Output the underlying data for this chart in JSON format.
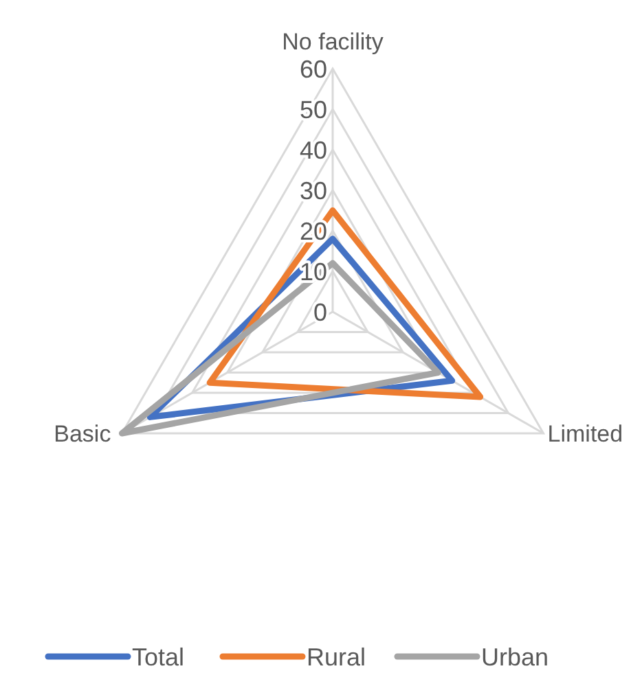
{
  "chart_data": {
    "type": "radar",
    "categories": [
      "No facility",
      "Limited",
      "Basic"
    ],
    "series": [
      {
        "name": "Total",
        "color": "#4472c4",
        "values": [
          18,
          34,
          52
        ]
      },
      {
        "name": "Rural",
        "color": "#ed7d31",
        "values": [
          25,
          42,
          35
        ]
      },
      {
        "name": "Urban",
        "color": "#a5a5a5",
        "values": [
          12,
          30,
          60
        ]
      }
    ],
    "ylim": [
      0,
      60
    ],
    "yticks": [
      0,
      10,
      20,
      30,
      40,
      50,
      60
    ],
    "grid": true,
    "legend": "bottom",
    "marker": "none"
  }
}
